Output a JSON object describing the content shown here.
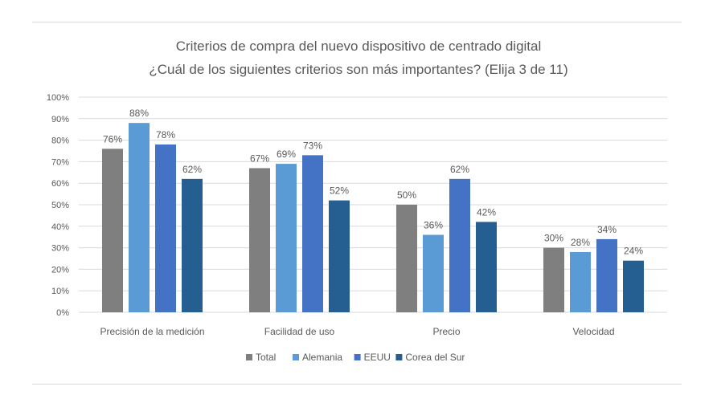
{
  "chart_data": {
    "type": "bar",
    "title": "Criterios de compra del nuevo dispositivo de centrado digital",
    "subtitle": "¿Cuál de los siguientes criterios son más importantes? (Elija 3 de 11)",
    "categories": [
      "Precisión de la medición",
      "Facilidad de uso",
      "Precio",
      "Velocidad"
    ],
    "series": [
      {
        "name": "Total",
        "values": [
          76,
          67,
          50,
          30
        ],
        "color": "#7f7f7f"
      },
      {
        "name": "Alemania",
        "values": [
          88,
          69,
          36,
          28
        ],
        "color": "#5b9bd5"
      },
      {
        "name": "EEUU",
        "values": [
          78,
          73,
          62,
          34
        ],
        "color": "#4472c4"
      },
      {
        "name": "Corea del Sur",
        "values": [
          62,
          52,
          42,
          24
        ],
        "color": "#255e91"
      }
    ],
    "value_suffix": "%",
    "ylim": [
      0,
      100
    ],
    "yticks": [
      0,
      10,
      20,
      30,
      40,
      50,
      60,
      70,
      80,
      90,
      100
    ],
    "grid": true,
    "legend_position": "bottom"
  }
}
